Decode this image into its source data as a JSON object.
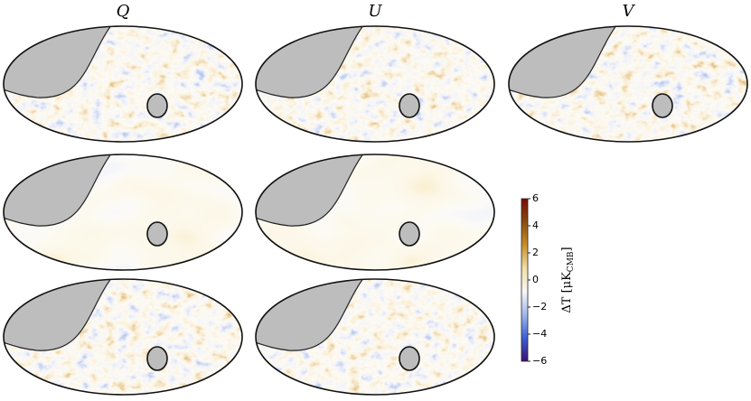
{
  "chart_data": {
    "type": "map-grid",
    "column_titles": [
      "Q",
      "U",
      "V"
    ],
    "colorbar": {
      "label_parts": [
        "ΔT [μK",
        "CMB",
        "]"
      ],
      "lim": [
        -6,
        6
      ],
      "ticks": [
        {
          "value": -6,
          "label": "−6"
        },
        {
          "value": -4,
          "label": "−4"
        },
        {
          "value": -2,
          "label": "−2"
        },
        0,
        2,
        4,
        6
      ],
      "colors": [
        "#3b0f70",
        "#3b5fd6",
        "#9fb6e8",
        "#f7f7f5",
        "#f1dfa8",
        "#c8902a",
        "#8a4a0c",
        "#7a0a0a"
      ]
    }
  }
}
